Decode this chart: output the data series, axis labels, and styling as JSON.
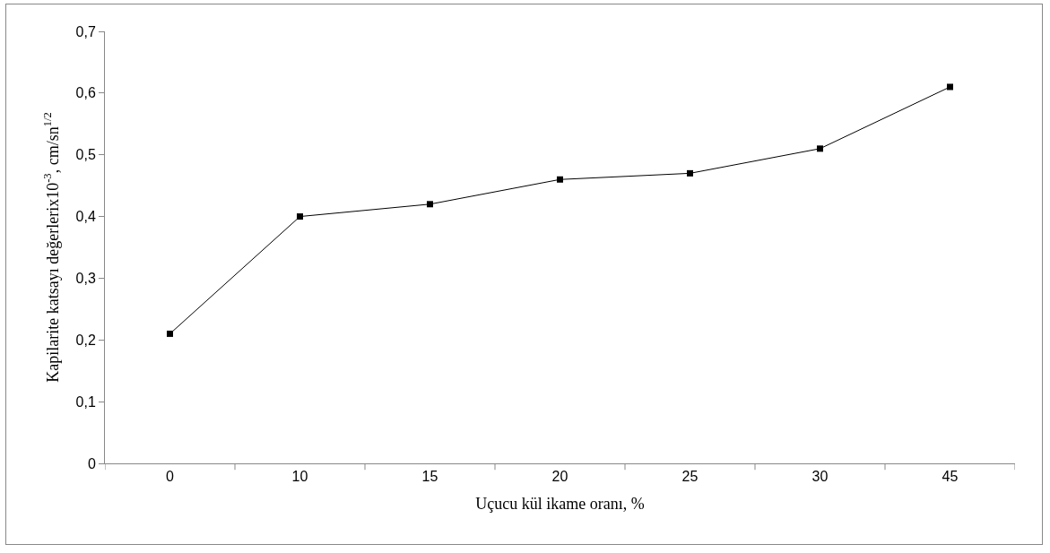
{
  "chart_data": {
    "type": "line",
    "xlabel": "Uçucu kül ikame oranı, %",
    "ylabel": "Kapilarite katsayı değerlerix10$^{-3}$, cm/sn$^{1/2}$",
    "categories": [
      "0",
      "10",
      "15",
      "20",
      "25",
      "30",
      "45"
    ],
    "values": [
      0.21,
      0.4,
      0.42,
      0.46,
      0.47,
      0.51,
      0.61
    ],
    "color": "#000000",
    "marker": "square",
    "line_style": "solid",
    "ylim": [
      0,
      0.7
    ],
    "yticks": [
      0,
      {
        "value": 0.1,
        "label": "0,1"
      },
      {
        "value": 0.2,
        "label": "0,2"
      },
      {
        "value": 0.3,
        "label": "0,3"
      },
      {
        "value": 0.4,
        "label": "0,4"
      },
      {
        "value": 0.5,
        "label": "0,5"
      },
      {
        "value": 0.6,
        "label": "0,6"
      },
      {
        "value": 0.7,
        "label": "0,7"
      }
    ]
  }
}
